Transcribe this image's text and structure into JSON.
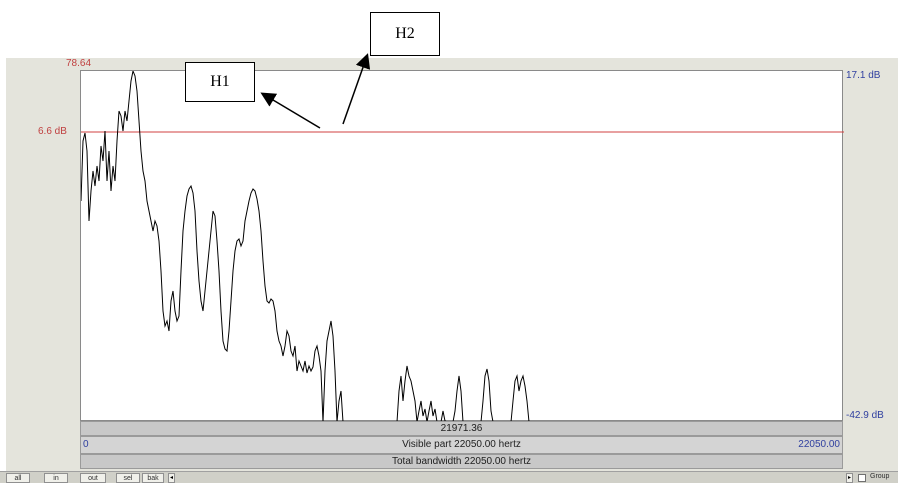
{
  "callouts": {
    "h1": "H1",
    "h2": "H2"
  },
  "axis": {
    "left_top": "78.64",
    "left_line": "6.6 dB",
    "right_top": "17.1 dB",
    "right_bottom": "-42.9 dB"
  },
  "bars": {
    "cursor": "21971.36",
    "visible_start": "0",
    "visible_text": "Visible part 22050.00 hertz",
    "visible_end": "22050.00",
    "total_text": "Total bandwidth 22050.00 hertz"
  },
  "buttons": [
    "all",
    "in",
    "out",
    "sel",
    "bak"
  ],
  "group_label": "Group",
  "chart_data": {
    "type": "line",
    "x_range": [
      0,
      22050
    ],
    "y_range_db": [
      -42.9,
      17.1
    ],
    "reference_line_db": 6.6,
    "colors": {
      "spectrum": "#000000",
      "reference": "#d04040"
    }
  }
}
